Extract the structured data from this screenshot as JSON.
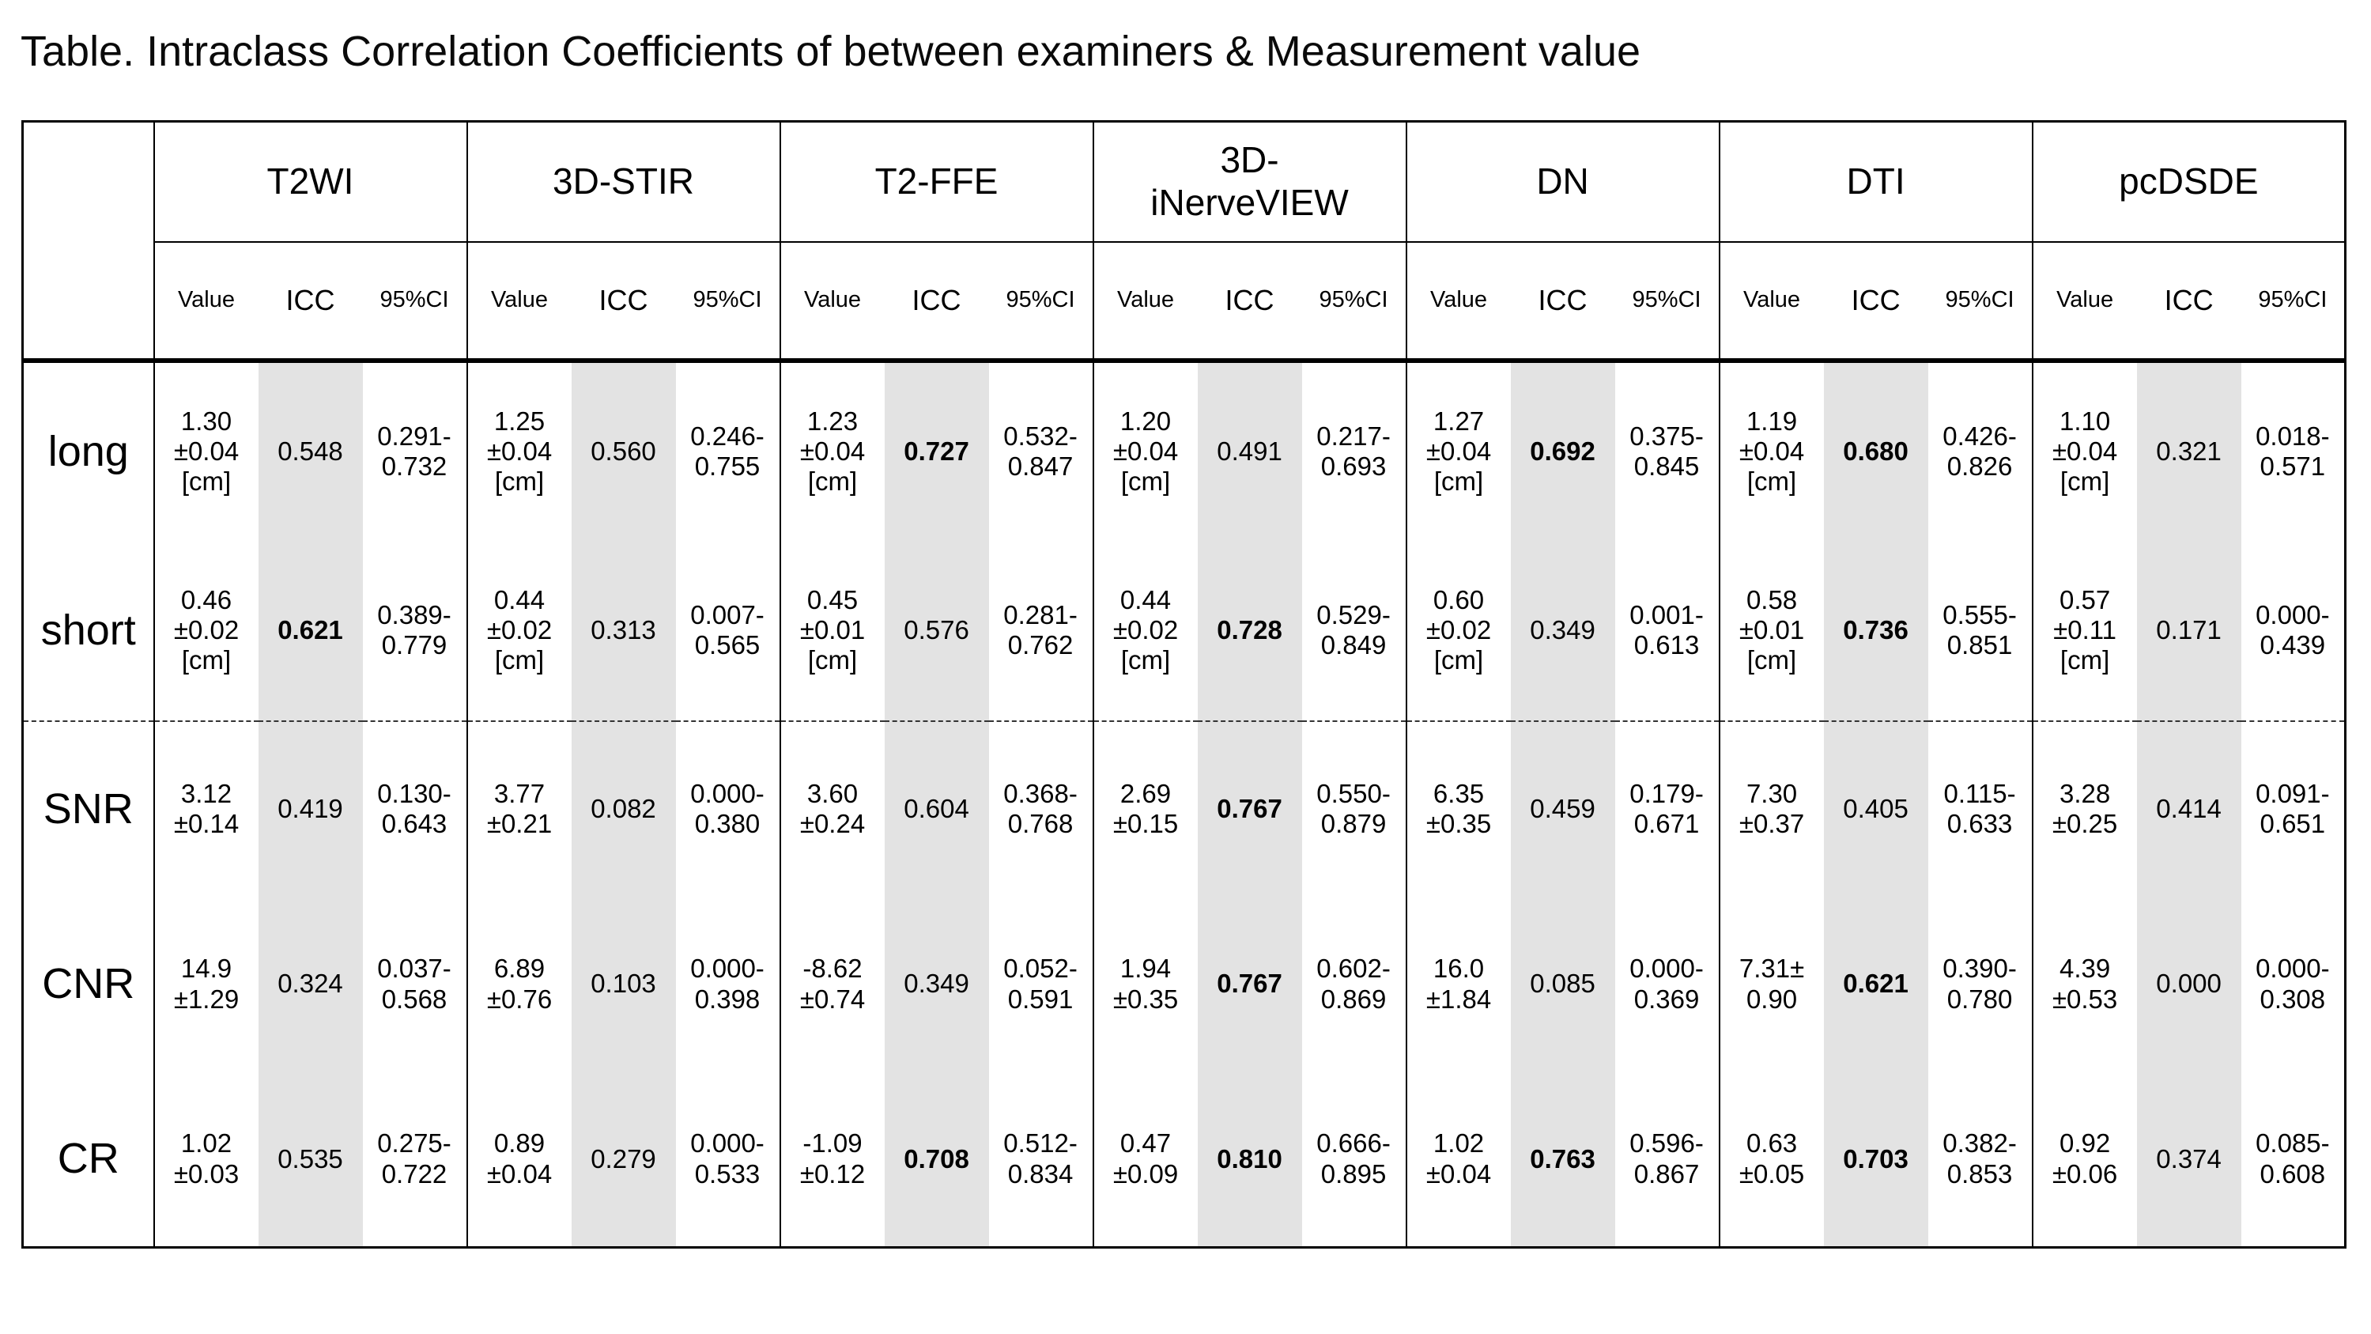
{
  "title": "Table. Intraclass Correlation Coefficients of between examiners & Measurement value",
  "colors": {
    "grid": "#000000",
    "icc_stripe": "#e3e3e3",
    "background": "#ffffff"
  },
  "table": {
    "subheaders": [
      "Value",
      "ICC",
      "95%CI"
    ],
    "methods": [
      "T2WI",
      "3D-STIR",
      "T2-FFE",
      "3D-\niNerveVIEW",
      "DN",
      "DTI",
      "pcDSDE"
    ],
    "rows": [
      {
        "label": "long",
        "dashed_top": false,
        "cells": [
          {
            "value": "1.30\n±0.04\n[cm]",
            "icc": "0.548",
            "bold": false,
            "ci": "0.291-\n0.732"
          },
          {
            "value": "1.25\n±0.04\n[cm]",
            "icc": "0.560",
            "bold": false,
            "ci": "0.246-\n0.755"
          },
          {
            "value": "1.23\n±0.04\n[cm]",
            "icc": "0.727",
            "bold": true,
            "ci": "0.532-\n0.847"
          },
          {
            "value": "1.20\n±0.04\n[cm]",
            "icc": "0.491",
            "bold": false,
            "ci": "0.217-\n0.693"
          },
          {
            "value": "1.27\n±0.04\n[cm]",
            "icc": "0.692",
            "bold": true,
            "ci": "0.375-\n0.845"
          },
          {
            "value": "1.19\n±0.04\n[cm]",
            "icc": "0.680",
            "bold": true,
            "ci": "0.426-\n0.826"
          },
          {
            "value": "1.10\n±0.04\n[cm]",
            "icc": "0.321",
            "bold": false,
            "ci": "0.018-\n0.571"
          }
        ]
      },
      {
        "label": "short",
        "dashed_top": false,
        "cells": [
          {
            "value": "0.46\n±0.02\n[cm]",
            "icc": "0.621",
            "bold": true,
            "ci": "0.389-\n0.779"
          },
          {
            "value": "0.44\n±0.02\n[cm]",
            "icc": "0.313",
            "bold": false,
            "ci": "0.007-\n0.565"
          },
          {
            "value": "0.45\n±0.01\n[cm]",
            "icc": "0.576",
            "bold": false,
            "ci": "0.281-\n0.762"
          },
          {
            "value": "0.44\n±0.02\n[cm]",
            "icc": "0.728",
            "bold": true,
            "ci": "0.529-\n0.849"
          },
          {
            "value": "0.60\n±0.02\n[cm]",
            "icc": "0.349",
            "bold": false,
            "ci": "0.001-\n0.613"
          },
          {
            "value": "0.58\n±0.01\n[cm]",
            "icc": "0.736",
            "bold": true,
            "ci": "0.555-\n0.851"
          },
          {
            "value": "0.57\n±0.11\n[cm]",
            "icc": "0.171",
            "bold": false,
            "ci": "0.000-\n0.439"
          }
        ]
      },
      {
        "label": "SNR",
        "dashed_top": true,
        "cells": [
          {
            "value": "3.12\n±0.14",
            "icc": "0.419",
            "bold": false,
            "ci": "0.130-\n0.643"
          },
          {
            "value": "3.77\n±0.21",
            "icc": "0.082",
            "bold": false,
            "ci": "0.000-\n0.380"
          },
          {
            "value": "3.60\n±0.24",
            "icc": "0.604",
            "bold": false,
            "ci": "0.368-\n0.768"
          },
          {
            "value": "2.69\n±0.15",
            "icc": "0.767",
            "bold": true,
            "ci": "0.550-\n0.879"
          },
          {
            "value": "6.35\n±0.35",
            "icc": "0.459",
            "bold": false,
            "ci": "0.179-\n0.671"
          },
          {
            "value": "7.30\n±0.37",
            "icc": "0.405",
            "bold": false,
            "ci": "0.115-\n0.633"
          },
          {
            "value": "3.28\n±0.25",
            "icc": "0.414",
            "bold": false,
            "ci": "0.091-\n0.651"
          }
        ]
      },
      {
        "label": "CNR",
        "dashed_top": false,
        "cells": [
          {
            "value": "14.9\n±1.29",
            "icc": "0.324",
            "bold": false,
            "ci": "0.037-\n0.568"
          },
          {
            "value": "6.89\n±0.76",
            "icc": "0.103",
            "bold": false,
            "ci": "0.000-\n0.398"
          },
          {
            "value": "-8.62\n±0.74",
            "icc": "0.349",
            "bold": false,
            "ci": "0.052-\n0.591"
          },
          {
            "value": "1.94\n±0.35",
            "icc": "0.767",
            "bold": true,
            "ci": "0.602-\n0.869"
          },
          {
            "value": "16.0\n±1.84",
            "icc": "0.085",
            "bold": false,
            "ci": "0.000-\n0.369"
          },
          {
            "value": "7.31±\n0.90",
            "icc": "0.621",
            "bold": true,
            "ci": "0.390-\n0.780"
          },
          {
            "value": "4.39\n±0.53",
            "icc": "0.000",
            "bold": false,
            "ci": "0.000-\n0.308"
          }
        ]
      },
      {
        "label": "CR",
        "dashed_top": false,
        "cells": [
          {
            "value": "1.02\n±0.03",
            "icc": "0.535",
            "bold": false,
            "ci": "0.275-\n0.722"
          },
          {
            "value": "0.89\n±0.04",
            "icc": "0.279",
            "bold": false,
            "ci": "0.000-\n0.533"
          },
          {
            "value": "-1.09\n±0.12",
            "icc": "0.708",
            "bold": true,
            "ci": "0.512-\n0.834"
          },
          {
            "value": "0.47\n±0.09",
            "icc": "0.810",
            "bold": true,
            "ci": "0.666-\n0.895"
          },
          {
            "value": "1.02\n±0.04",
            "icc": "0.763",
            "bold": true,
            "ci": "0.596-\n0.867"
          },
          {
            "value": "0.63\n±0.05",
            "icc": "0.703",
            "bold": true,
            "ci": "0.382-\n0.853"
          },
          {
            "value": "0.92\n±0.06",
            "icc": "0.374",
            "bold": false,
            "ci": "0.085-\n0.608"
          }
        ]
      }
    ]
  }
}
